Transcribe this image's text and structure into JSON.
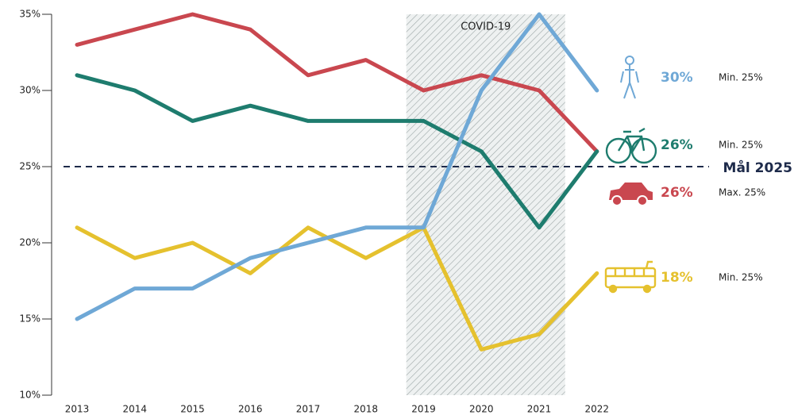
{
  "chart_data": {
    "type": "line",
    "x": [
      2013,
      2014,
      2015,
      2016,
      2017,
      2018,
      2019,
      2020,
      2021,
      2022
    ],
    "xlim": [
      2012.56,
      2022.8
    ],
    "xticks": [
      2013,
      2014,
      2015,
      2016,
      2017,
      2018,
      2019,
      2020,
      2021,
      2022
    ],
    "ylim": [
      10,
      35
    ],
    "yticks": [
      {
        "value": 10,
        "label": "10%"
      },
      {
        "value": 15,
        "label": "15%"
      },
      {
        "value": 20,
        "label": "20%"
      },
      {
        "value": 25,
        "label": "25%"
      },
      {
        "value": 30,
        "label": "30%"
      },
      {
        "value": 35,
        "label": "35%"
      }
    ],
    "shade": {
      "label": "COVID-19",
      "from": 2018.7,
      "to": 2021.45
    },
    "target": {
      "value": 25,
      "label": "Mål 2025"
    },
    "series": [
      {
        "color": "#c9474f",
        "values": [
          33,
          34,
          35,
          34,
          31,
          32,
          30,
          31,
          30,
          26
        ],
        "value_labels": [
          null,
          null,
          null,
          null,
          null,
          null,
          null,
          null,
          null,
          "26%"
        ],
        "note": "Max. 25%"
      },
      {
        "color": "#1e7c6e",
        "values": [
          31,
          30,
          28,
          29,
          28,
          28,
          28,
          26,
          21,
          26
        ],
        "value_labels": [
          null,
          null,
          null,
          null,
          null,
          null,
          null,
          null,
          null,
          "26%"
        ],
        "note": "Min. 25%"
      },
      {
        "color": "#e5c12e",
        "values": [
          21,
          19,
          20,
          18,
          21,
          19,
          21,
          13,
          14,
          18
        ],
        "value_labels": [
          null,
          null,
          null,
          null,
          null,
          null,
          null,
          null,
          null,
          "18%"
        ],
        "note": "Min. 25%"
      },
      {
        "color": "#6fa8d6",
        "values": [
          15,
          17,
          17,
          19,
          20,
          21,
          21,
          30,
          35,
          30
        ],
        "value_labels": [
          null,
          null,
          null,
          null,
          null,
          null,
          null,
          null,
          null,
          "30%"
        ],
        "note": "Min. 25%"
      }
    ]
  }
}
